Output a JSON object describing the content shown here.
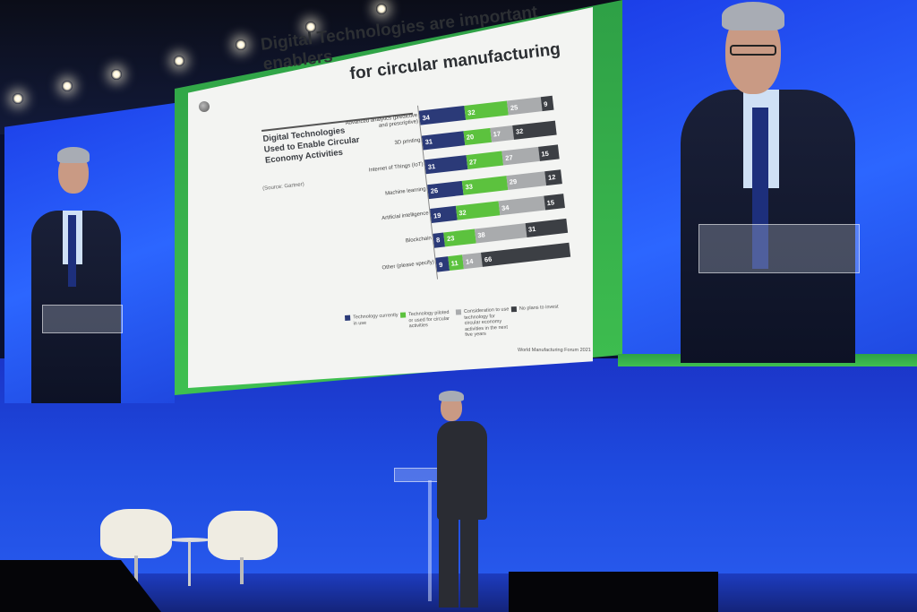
{
  "slide": {
    "title_line1": "Digital Technologies are important enablers",
    "title_line2": "for circular manufacturing",
    "chart_heading": "Digital Technologies Used to Enable Circular Economy Activities",
    "source": "(Source: Gartner)",
    "footer": "World Manufacturing Forum 2021"
  },
  "chart_data": {
    "type": "bar",
    "stacked": true,
    "orientation": "horizontal",
    "title": "Digital Technologies Used to Enable Circular Economy Activities",
    "categories": [
      "Advanced analytics (predictive and prescriptive)",
      "3D printing",
      "Internet of Things (IoT)",
      "Machine learning",
      "Artificial intelligence",
      "Blockchain",
      "Other (please specify)"
    ],
    "series": [
      {
        "name": "Technology currently in use",
        "color": "#2b3a78",
        "values": [
          34,
          31,
          31,
          26,
          19,
          8,
          9
        ]
      },
      {
        "name": "Technology piloted or used for circular activities",
        "color": "#5cc23e",
        "values": [
          32,
          20,
          27,
          33,
          32,
          23,
          11
        ]
      },
      {
        "name": "Consideration to use technology for circular economy activities in the next five years",
        "color": "#a9abad",
        "values": [
          25,
          17,
          27,
          29,
          34,
          38,
          14
        ]
      },
      {
        "name": "No plans to invest",
        "color": "#3c3f44",
        "values": [
          9,
          32,
          15,
          12,
          15,
          31,
          66
        ]
      }
    ]
  },
  "colors": {
    "screen_blue": "#2c5cf5",
    "frame_green": "#3cb64b",
    "stage_blue": "#1e4be0"
  }
}
